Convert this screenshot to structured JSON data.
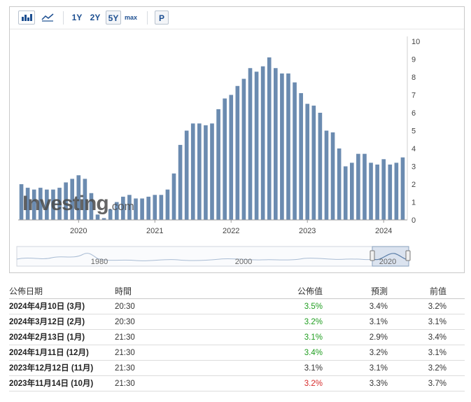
{
  "toolbar": {
    "bar_icon": "bar-chart-icon",
    "area_icon": "area-chart-icon",
    "range_1y": "1Y",
    "range_2y": "2Y",
    "range_5y": "5Y",
    "range_max": "max",
    "p_label": "P",
    "active_range": "5Y"
  },
  "watermark": {
    "brand": "Investing",
    "suffix": ".com"
  },
  "navigator": {
    "labels": [
      "1980",
      "2000",
      "2020"
    ]
  },
  "chart_data": {
    "type": "bar",
    "x_tick_labels": [
      "2020",
      "2021",
      "2022",
      "2023",
      "2024"
    ],
    "y_tick_labels": [
      "0",
      "1",
      "2",
      "3",
      "4",
      "5",
      "6",
      "7",
      "8",
      "9",
      "10"
    ],
    "ylim": [
      0,
      10
    ],
    "y_axis_side": "right",
    "grid": false,
    "color": "#6b8bb0",
    "values": [
      2.0,
      1.8,
      1.7,
      1.8,
      1.7,
      1.7,
      1.8,
      2.1,
      2.3,
      2.5,
      2.3,
      1.5,
      0.3,
      0.1,
      0.6,
      1.0,
      1.3,
      1.4,
      1.2,
      1.2,
      1.3,
      1.4,
      1.4,
      1.7,
      2.6,
      4.2,
      5.0,
      5.4,
      5.4,
      5.3,
      5.4,
      6.2,
      6.8,
      7.0,
      7.5,
      7.9,
      8.5,
      8.3,
      8.6,
      9.1,
      8.5,
      8.2,
      8.2,
      7.7,
      7.1,
      6.5,
      6.4,
      6.0,
      5.0,
      4.9,
      4.0,
      3.0,
      3.2,
      3.7,
      3.7,
      3.2,
      3.1,
      3.4,
      3.1,
      3.2,
      3.5
    ]
  },
  "table": {
    "headers": {
      "date": "公佈日期",
      "time": "時間",
      "actual": "公佈值",
      "forecast": "預測",
      "previous": "前值"
    },
    "rows": [
      {
        "date": "2024年4月10日 (3月)",
        "time": "20:30",
        "actual": "3.5%",
        "actual_color": "green",
        "forecast": "3.4%",
        "previous": "3.2%"
      },
      {
        "date": "2024年3月12日 (2月)",
        "time": "20:30",
        "actual": "3.2%",
        "actual_color": "green",
        "forecast": "3.1%",
        "previous": "3.1%"
      },
      {
        "date": "2024年2月13日 (1月)",
        "time": "21:30",
        "actual": "3.1%",
        "actual_color": "green",
        "forecast": "2.9%",
        "previous": "3.4%"
      },
      {
        "date": "2024年1月11日 (12月)",
        "time": "21:30",
        "actual": "3.4%",
        "actual_color": "green",
        "forecast": "3.2%",
        "previous": "3.1%"
      },
      {
        "date": "2023年12月12日 (11月)",
        "time": "21:30",
        "actual": "3.1%",
        "actual_color": "black",
        "forecast": "3.1%",
        "previous": "3.2%"
      },
      {
        "date": "2023年11月14日 (10月)",
        "time": "21:30",
        "actual": "3.2%",
        "actual_color": "red",
        "forecast": "3.3%",
        "previous": "3.7%"
      }
    ]
  },
  "colors": {
    "bar": "#6b8bb0",
    "accent": "#1d4f91",
    "up": "#1f9d1f",
    "down": "#d62a2a"
  }
}
